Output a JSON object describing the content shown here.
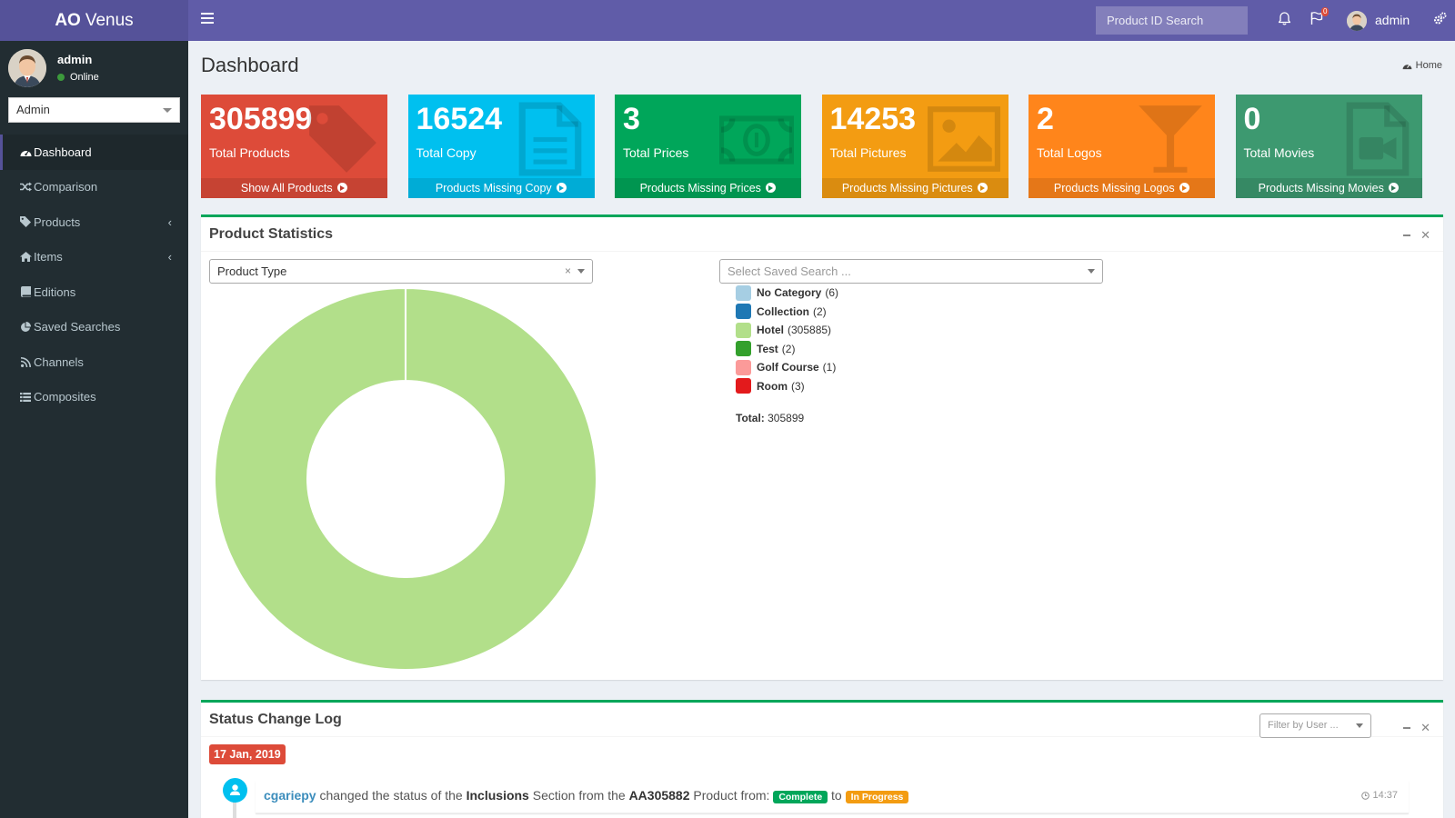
{
  "app": {
    "logo_bold": "AO",
    "logo_light": "Venus"
  },
  "user": {
    "name": "admin",
    "status": "Online",
    "role": "Admin"
  },
  "nav": [
    {
      "label": "Dashboard",
      "icon": "dashboard-icon",
      "active": true
    },
    {
      "label": "Comparison",
      "icon": "random-icon"
    },
    {
      "label": "Products",
      "icon": "tag-icon",
      "has_children": true
    },
    {
      "label": "Items",
      "icon": "home-icon",
      "has_children": true
    },
    {
      "label": "Editions",
      "icon": "book-icon"
    },
    {
      "label": "Saved Searches",
      "icon": "pie-chart-icon"
    },
    {
      "label": "Channels",
      "icon": "rss-icon"
    },
    {
      "label": "Composites",
      "icon": "list-icon"
    }
  ],
  "topbar": {
    "search_placeholder": "Product ID Search",
    "flag_count": "0",
    "user_name": "admin"
  },
  "page": {
    "title": "Dashboard",
    "breadcrumb": "Home"
  },
  "stats": [
    {
      "value": "305899",
      "label": "Total Products",
      "footer": "Show All Products",
      "color": "#dd4b39",
      "icon": "tag-icon"
    },
    {
      "value": "16524",
      "label": "Total Copy",
      "footer": "Products Missing Copy",
      "color": "#00c0ef",
      "icon": "file-text-icon"
    },
    {
      "value": "3",
      "label": "Total Prices",
      "footer": "Products Missing Prices",
      "color": "#00a65a",
      "icon": "money-icon"
    },
    {
      "value": "14253",
      "label": "Total Pictures",
      "footer": "Products Missing Pictures",
      "color": "#f39c12",
      "icon": "picture-icon"
    },
    {
      "value": "2",
      "label": "Total Logos",
      "footer": "Products Missing Logos",
      "color": "#ff851b",
      "icon": "glass-icon"
    },
    {
      "value": "0",
      "label": "Total Movies",
      "footer": "Products Missing Movies",
      "color": "#3d9970",
      "icon": "video-file-icon"
    }
  ],
  "product_stats": {
    "title": "Product Statistics",
    "type_select": "Product Type",
    "saved_search_placeholder": "Select Saved Search ...",
    "legend": [
      {
        "name": "No Category",
        "count": "(6)",
        "color": "#a6cee3",
        "value": 6
      },
      {
        "name": "Collection",
        "count": "(2)",
        "color": "#1f78b4",
        "value": 2
      },
      {
        "name": "Hotel",
        "count": "(305885)",
        "color": "#b2df8a",
        "value": 305885
      },
      {
        "name": "Test",
        "count": "(2)",
        "color": "#33a02c",
        "value": 2
      },
      {
        "name": "Golf Course",
        "count": "(1)",
        "color": "#fb9a99",
        "value": 1
      },
      {
        "name": "Room",
        "count": "(3)",
        "color": "#e31a1c",
        "value": 3
      }
    ],
    "total_label": "Total:",
    "total_value": "305899"
  },
  "status_log": {
    "title": "Status Change Log",
    "filter_placeholder": "Filter by User ...",
    "date": "17 Jan, 2019",
    "entry": {
      "user": "cgariepy",
      "t1": "changed the status of the",
      "section": "Inclusions",
      "t2": "Section from the",
      "product": "AA305882",
      "t3": "Product from:",
      "from": "Complete",
      "t4": "to",
      "to": "In Progress",
      "time": "14:37"
    }
  }
}
